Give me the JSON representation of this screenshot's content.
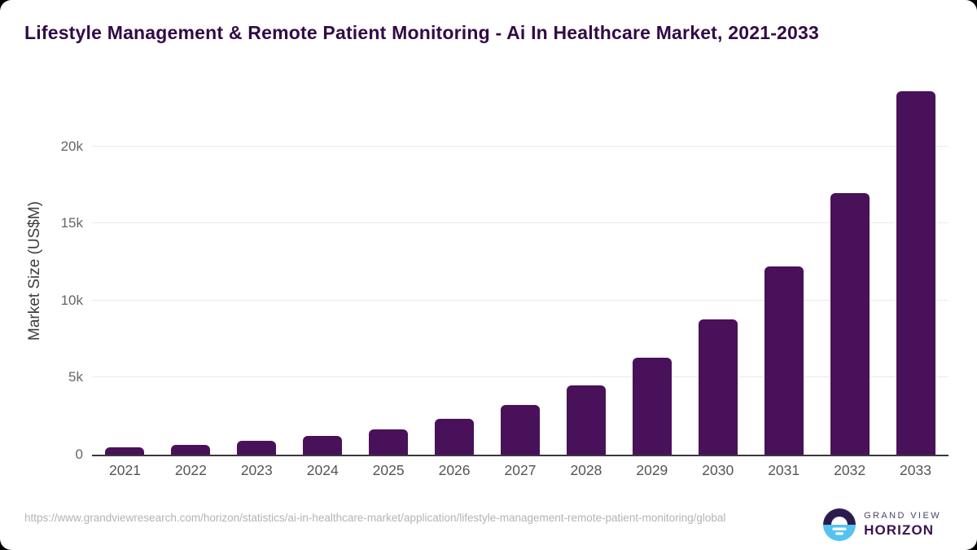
{
  "title": "Lifestyle Management & Remote Patient Monitoring - Ai In Healthcare Market, 2021-2033",
  "chart_data": {
    "type": "bar",
    "title": "Lifestyle Management & Remote Patient Monitoring - Ai In Healthcare Market, 2021-2033",
    "categories": [
      "2021",
      "2022",
      "2023",
      "2024",
      "2025",
      "2026",
      "2027",
      "2028",
      "2029",
      "2030",
      "2031",
      "2032",
      "2033"
    ],
    "values": [
      480,
      660,
      920,
      1230,
      1650,
      2320,
      3220,
      4500,
      6300,
      8800,
      12200,
      16950,
      23600
    ],
    "xlabel": "",
    "ylabel": "Market Size (US$M)",
    "ylim": [
      0,
      23900
    ],
    "yticks": [
      {
        "value": 0,
        "label": "0"
      },
      {
        "value": 5000,
        "label": "5k"
      },
      {
        "value": 10000,
        "label": "10k"
      },
      {
        "value": 15000,
        "label": "15k"
      },
      {
        "value": 20000,
        "label": "20k"
      }
    ],
    "grid": "horizontal",
    "legend": "none",
    "bar_color": "#491159"
  },
  "footer": {
    "source_url": "https://www.grandviewresearch.com/horizon/statistics/ai-in-healthcare-market/application/lifestyle-management-remote-patient-monitoring/global",
    "logo": {
      "top_text": "GRAND VIEW",
      "bottom_text": "HORIZON"
    }
  },
  "colors": {
    "title": "#320a46",
    "bar": "#491159",
    "axis_line": "#3a3740",
    "gridline": "#e9e9e9",
    "tick_label": "#666666",
    "x_label": "#555555",
    "y_axis_title": "#3d3d3d",
    "url_text": "#b3b3b3",
    "logo_dark_half": "#2b1b4d",
    "logo_blue_half": "#55c3f0",
    "logo_grand_view_text": "#4a4466",
    "logo_horizon_text": "#3a1253",
    "card_background": "#ffffff",
    "page_background": "#000000"
  }
}
